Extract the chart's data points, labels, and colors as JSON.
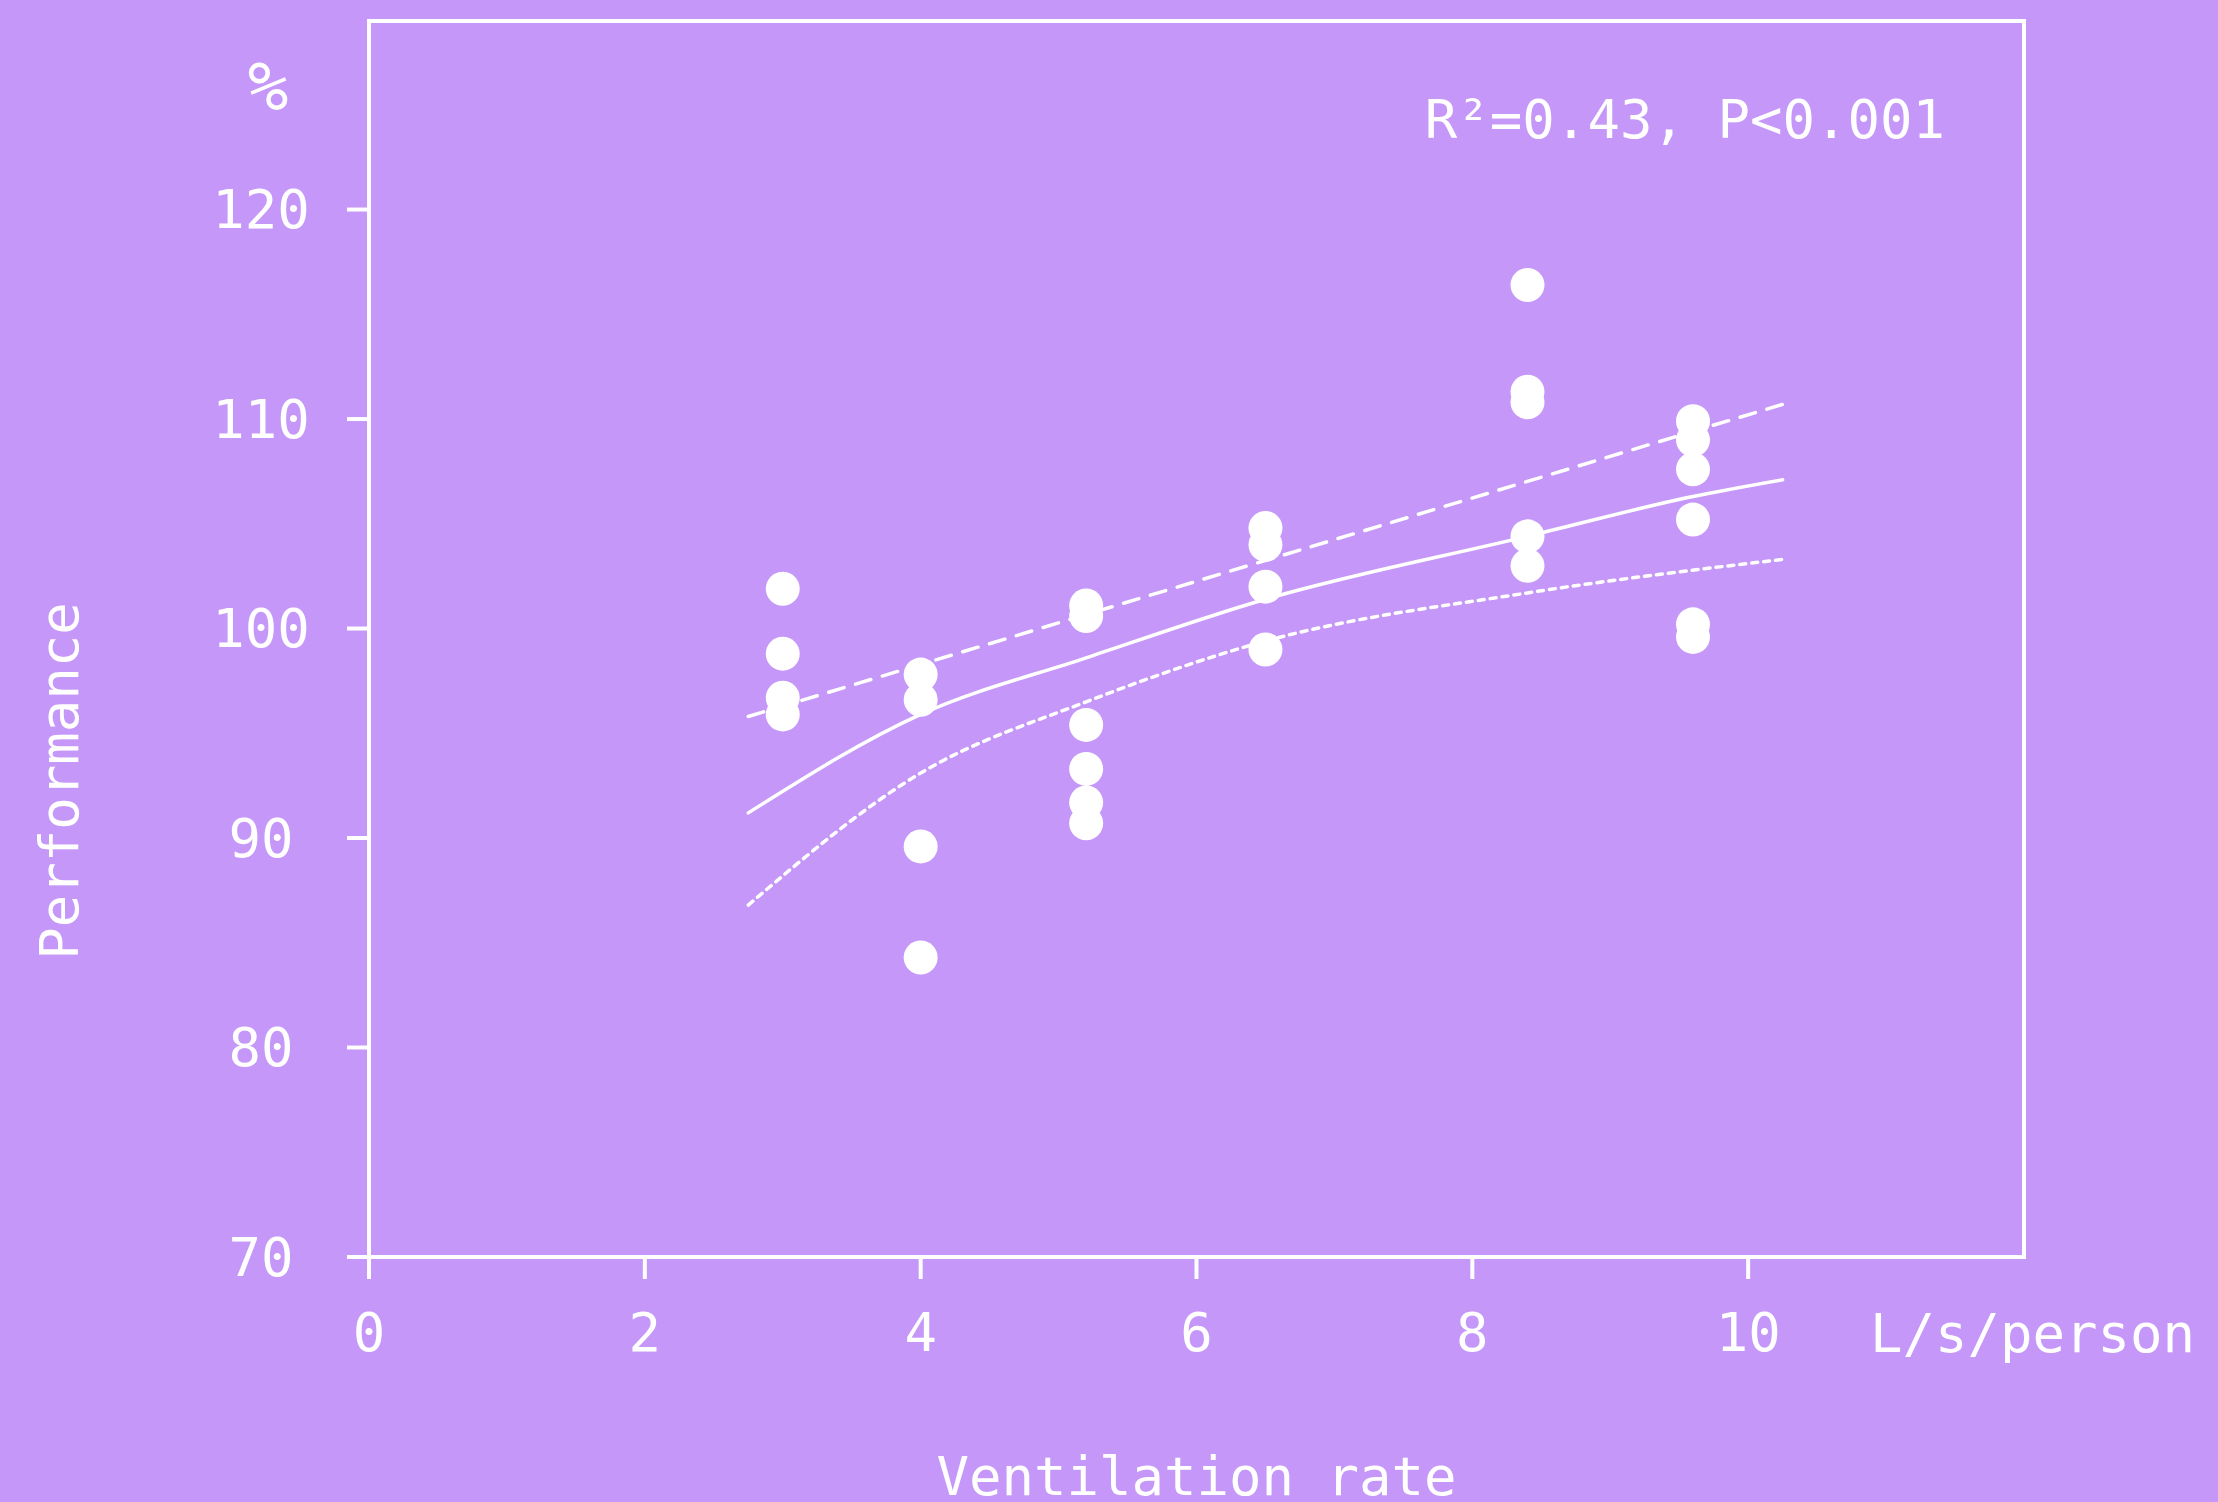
{
  "chart_data": {
    "type": "scatter",
    "xlabel": "Ventilation rate",
    "ylabel": "Performance",
    "annotations": [
      "R²=0.43, P<0.001",
      "%",
      "L/s/person"
    ],
    "xlim": [
      0,
      12
    ],
    "ylim": [
      70,
      129
    ],
    "xticks": [
      0,
      2,
      4,
      6,
      8,
      10
    ],
    "yticks": [
      70,
      80,
      90,
      100,
      110,
      120
    ],
    "grid": false,
    "series": [
      {
        "marker": "circle",
        "color": "#ffffff",
        "x": [
          3,
          3,
          3,
          3,
          4,
          4,
          4,
          4,
          5.2,
          5.2,
          5.2,
          5.2,
          5.2,
          5.2,
          6.5,
          6.5,
          6.5,
          6.5,
          8.4,
          8.4,
          8.4,
          8.4,
          8.4,
          9.6,
          9.6,
          9.6,
          9.6,
          9.6,
          9.6
        ],
        "values": [
          101.9,
          98.8,
          96.7,
          95.9,
          97.8,
          96.6,
          89.6,
          84.3,
          101.1,
          100.6,
          95.4,
          93.3,
          91.7,
          90.7,
          104.8,
          104.0,
          102.0,
          99.0,
          116.4,
          111.3,
          110.8,
          104.4,
          103.0,
          109.9,
          109.0,
          107.6,
          105.2,
          100.2,
          99.6
        ]
      },
      {
        "type": "line",
        "color": "#ffffff",
        "line_style": "solid",
        "x": [
          2.75,
          4,
          5.2,
          6.5,
          8.4,
          9.6,
          10.25
        ],
        "values": [
          91.2,
          95.9,
          98.6,
          101.4,
          104.4,
          106.3,
          107.1
        ]
      },
      {
        "type": "line",
        "color": "#ffffff",
        "line_style": "dashed",
        "x": [
          2.75,
          10.25
        ],
        "values": [
          95.8,
          110.7
        ]
      },
      {
        "type": "line",
        "color": "#ffffff",
        "line_style": "dotted",
        "x": [
          2.75,
          4,
          5.2,
          6.5,
          8.4,
          10.25
        ],
        "values": [
          86.8,
          93.1,
          96.5,
          99.4,
          101.7,
          103.3
        ]
      }
    ]
  }
}
